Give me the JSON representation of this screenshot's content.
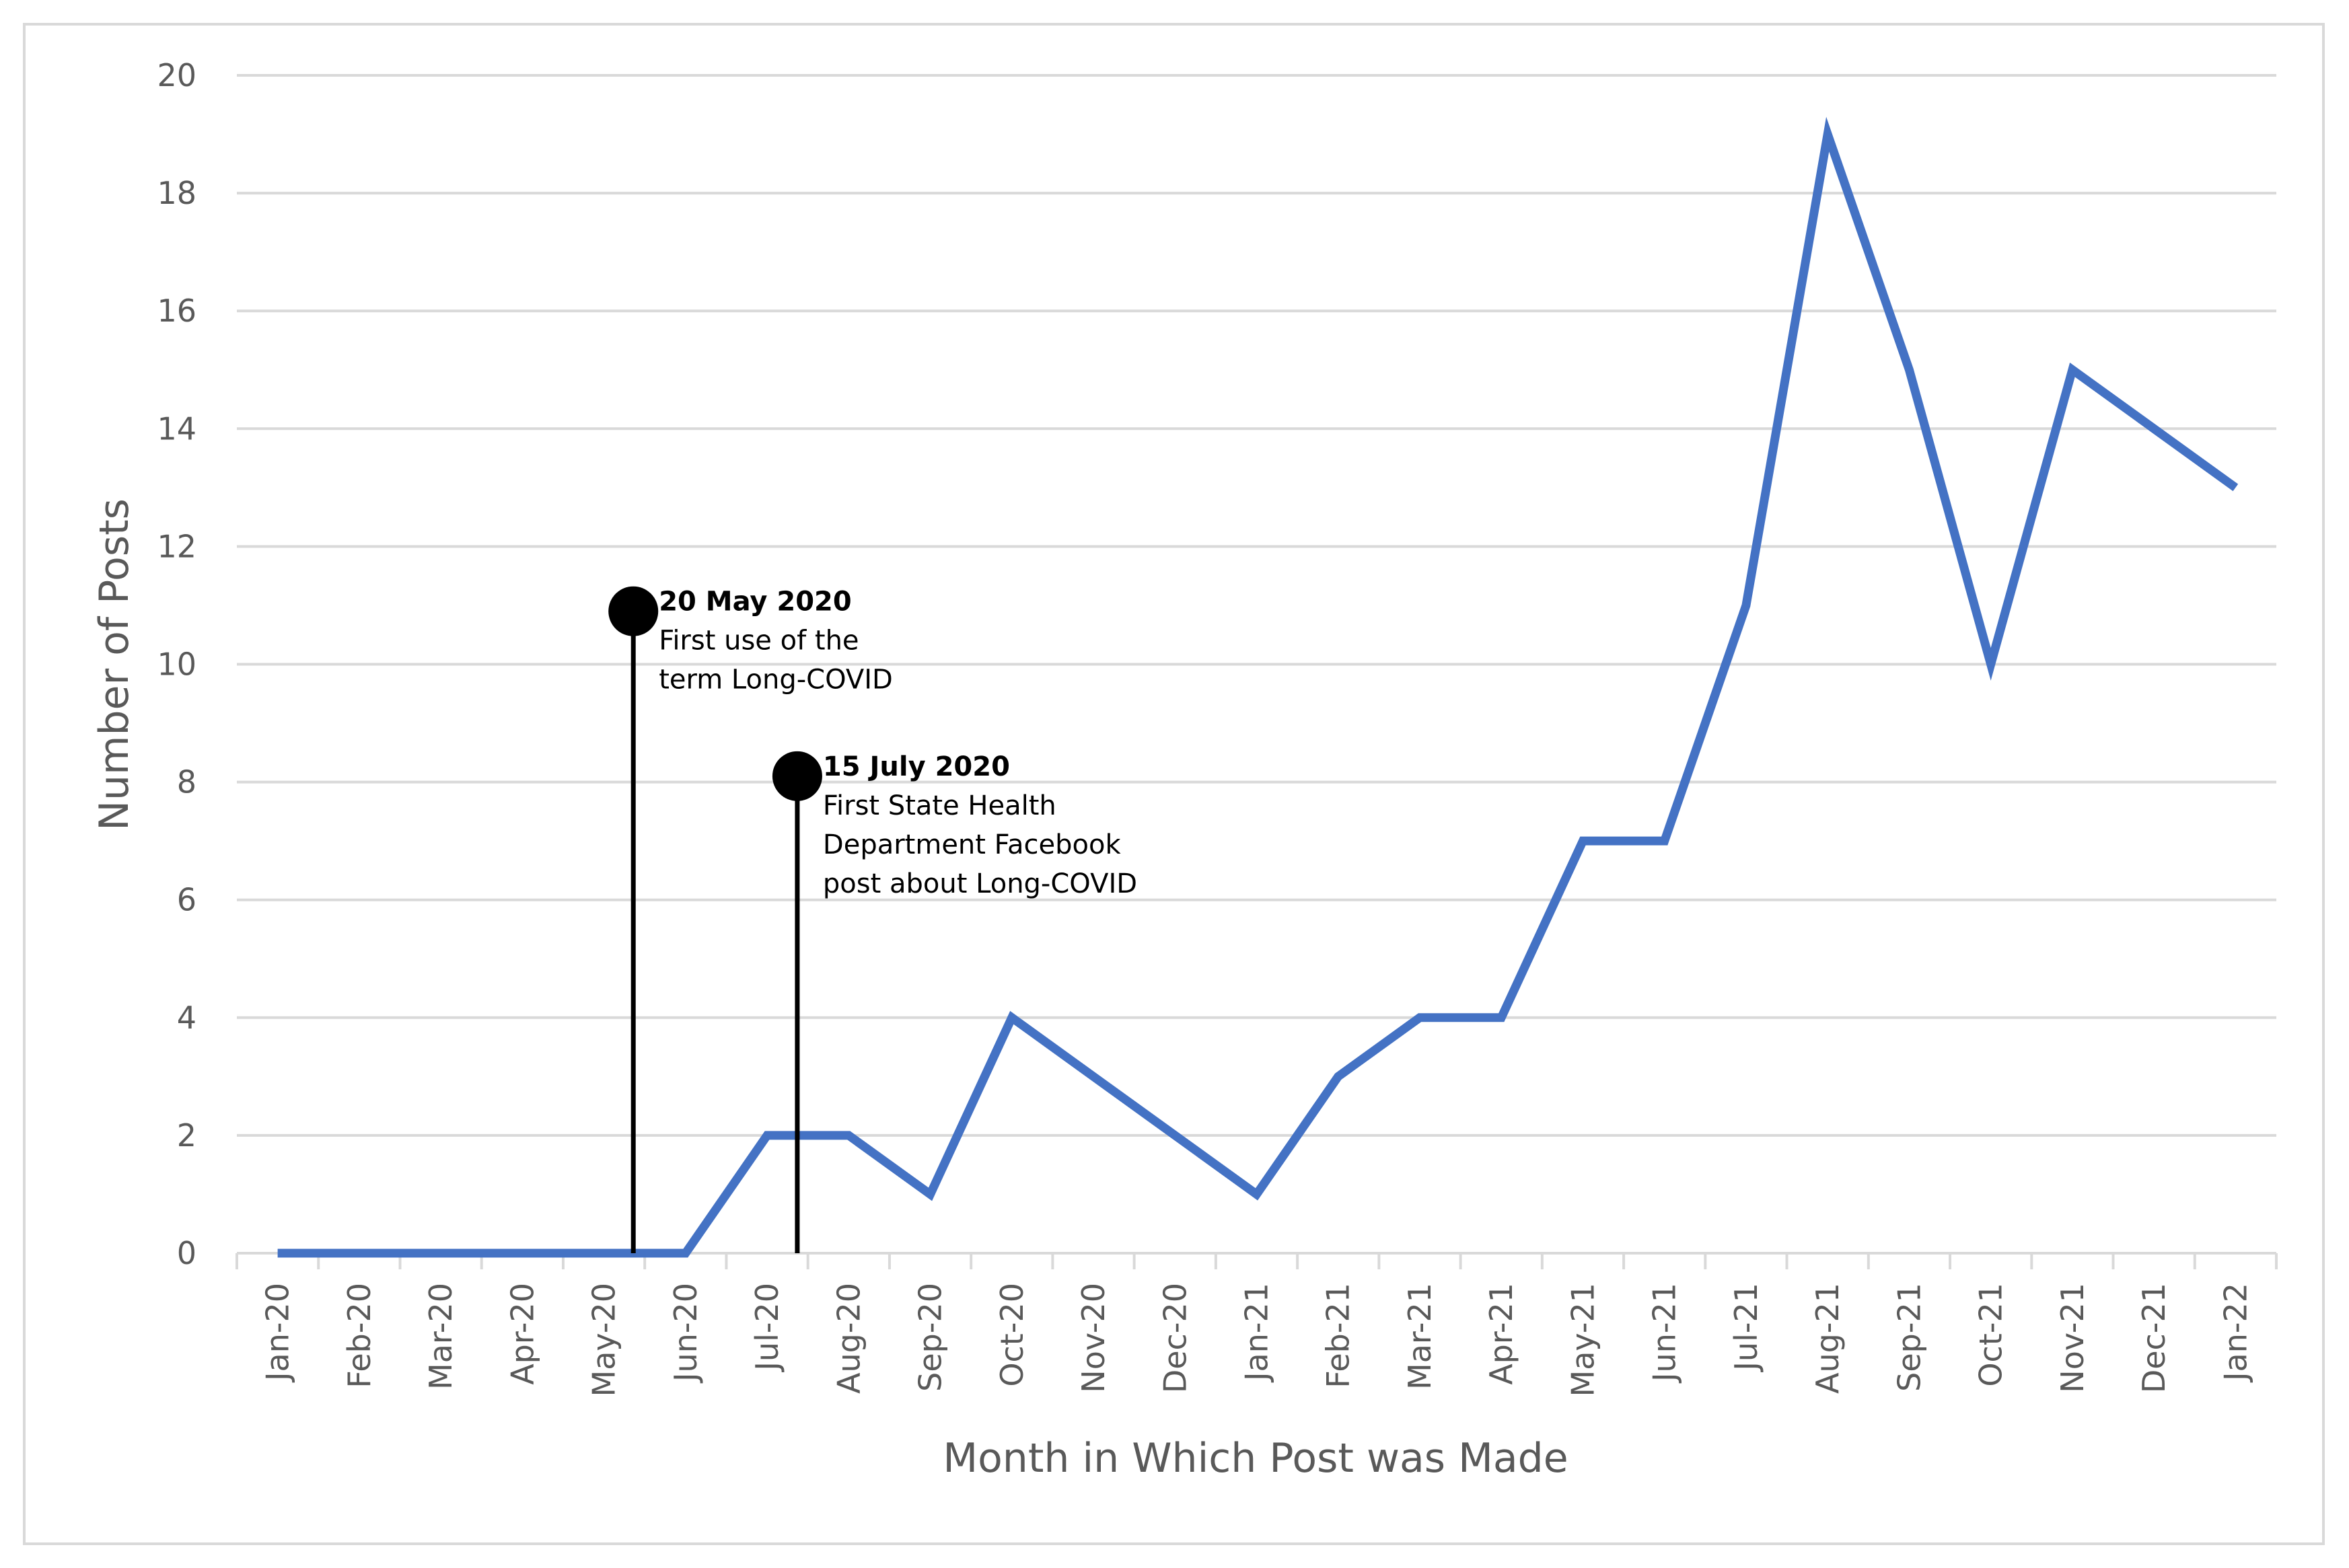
{
  "chart_data": {
    "type": "line",
    "title": "",
    "xlabel": "Month in Which Post was Made",
    "ylabel": "Number of Posts",
    "ylim": [
      0,
      20
    ],
    "yticks": [
      0,
      2,
      4,
      6,
      8,
      10,
      12,
      14,
      16,
      18,
      20
    ],
    "grid": true,
    "categories": [
      "Jan-20",
      "Feb-20",
      "Mar-20",
      "Apr-20",
      "May-20",
      "Jun-20",
      "Jul-20",
      "Aug-20",
      "Sep-20",
      "Oct-20",
      "Nov-20",
      "Dec-20",
      "Jan-21",
      "Feb-21",
      "Mar-21",
      "Apr-21",
      "May-21",
      "Jun-21",
      "Jul-21",
      "Aug-21",
      "Sep-21",
      "Oct-21",
      "Nov-21",
      "Dec-21",
      "Jan-22"
    ],
    "series": [
      {
        "values": [
          0,
          0,
          0,
          0,
          0,
          0,
          2,
          2,
          1,
          4,
          3,
          2,
          1,
          3,
          4,
          4,
          7,
          7,
          11,
          19,
          15,
          10,
          15,
          14,
          13
        ]
      }
    ],
    "annotations": [
      {
        "date": "20 May 2020",
        "x": 4.36,
        "y": 10.9,
        "lines": [
          "First use of the",
          "term Long-COVID"
        ]
      },
      {
        "date": "15 July 2020",
        "x": 6.37,
        "y": 8.1,
        "lines": [
          "First State Health",
          "Department Facebook",
          "post about Long-COVID"
        ]
      }
    ],
    "colors": {
      "line": "#4472c4",
      "grid": "#d9d9d9",
      "axis": "#d9d9d9",
      "annotation": "#000000",
      "text": "#595959"
    }
  }
}
